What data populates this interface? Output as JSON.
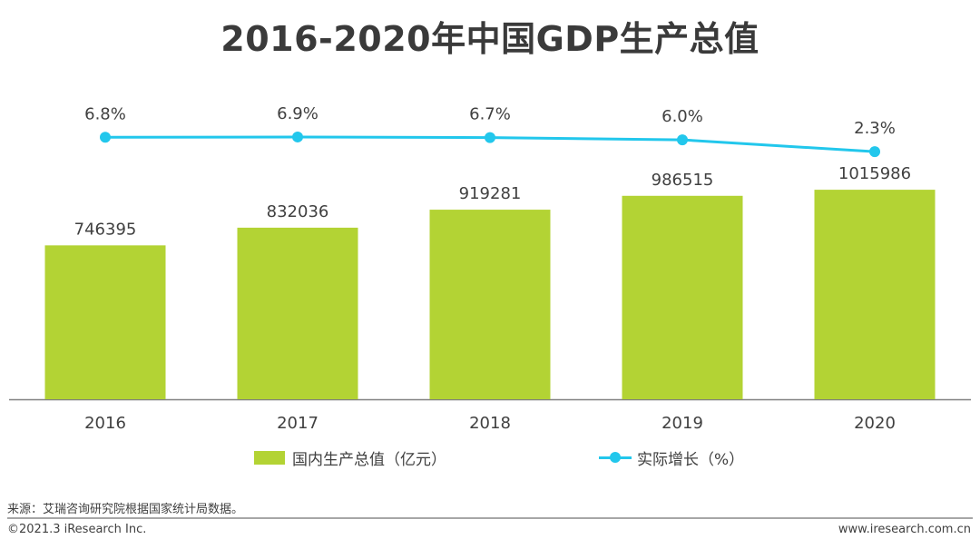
{
  "title": "2016-2020年中国GDP生产总值",
  "chart_data": {
    "type": "bar+line",
    "categories": [
      "2016",
      "2017",
      "2018",
      "2019",
      "2020"
    ],
    "series": [
      {
        "name": "国内生产总值（亿元）",
        "type": "bar",
        "values": [
          746395,
          832036,
          919281,
          986515,
          1015986
        ],
        "color": "#b3d334"
      },
      {
        "name": "实际增长（%）",
        "type": "line",
        "values": [
          6.8,
          6.9,
          6.7,
          6.0,
          2.3
        ],
        "labels": [
          "6.8%",
          "6.9%",
          "6.7%",
          "6.0%",
          "2.3%"
        ],
        "color": "#22c7ec"
      }
    ],
    "bar_ylim": [
      0,
      1100000
    ],
    "line_ylim": [
      -75,
      10
    ],
    "xlabel": "",
    "ylabel": "",
    "grid": false,
    "legend_position": "bottom"
  },
  "legend": {
    "bar_label": "国内生产总值（亿元）",
    "line_label": "实际增长（%）"
  },
  "source": "来源：艾瑞咨询研究院根据国家统计局数据。",
  "copyright": "©2021.3 iResearch Inc.",
  "website": "www.iresearch.com.cn",
  "colors": {
    "bar": "#b3d334",
    "line": "#22c7ec",
    "axis": "#808080",
    "text": "#404040"
  }
}
